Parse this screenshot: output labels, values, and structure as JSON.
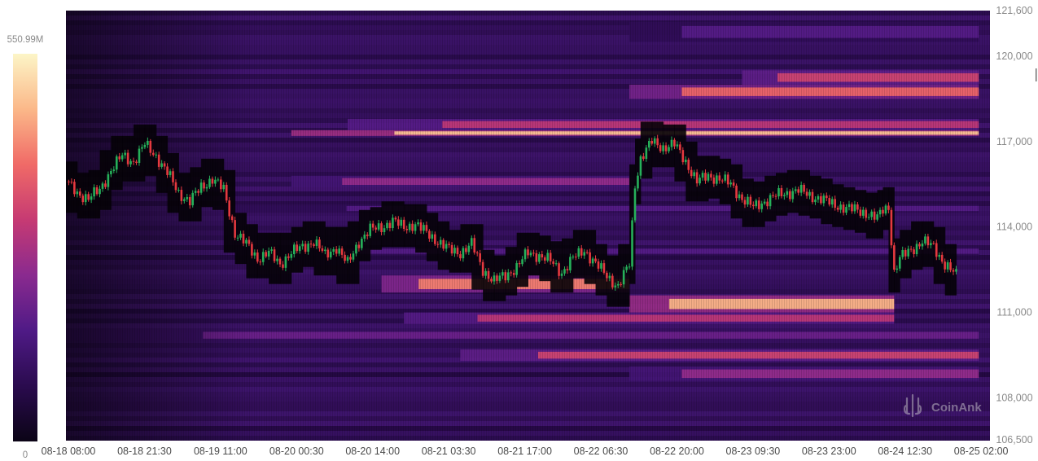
{
  "chart_data": {
    "type": "heatmap",
    "subtype": "liquidation-heatmap-with-candlesticks",
    "watermark": "CoinAnk",
    "colorbar": {
      "max_label": "550.99M",
      "min_label": "0",
      "stops": [
        "#0b0416",
        "#2a0b4e",
        "#4f1a86",
        "#8a2a8f",
        "#c63a73",
        "#f06a67",
        "#fbb889",
        "#fcf5c7"
      ]
    },
    "y_axis": {
      "ylim": [
        106500,
        121600
      ],
      "ticks": [
        121600,
        120000,
        117000,
        114000,
        111000,
        108000,
        106500
      ],
      "tick_labels": [
        "121,600",
        "120,000",
        "117,000",
        "114,000",
        "111,000",
        "108,000",
        "106,500"
      ]
    },
    "x_axis": {
      "start": "08-18 08:00",
      "end": "08-25 06:00",
      "ticks": [
        0,
        13.5,
        27,
        40.5,
        54,
        67.5,
        81,
        94.5,
        108,
        121.5,
        135,
        148.5,
        162
      ],
      "tick_labels": [
        "08-18 08:00",
        "08-18 21:30",
        "08-19 11:00",
        "08-20 00:30",
        "08-20 14:00",
        "08-21 03:30",
        "08-21 17:00",
        "08-22 06:30",
        "08-22 20:00",
        "08-23 09:30",
        "08-23 23:00",
        "08-24 12:30",
        "08-25 02:00"
      ]
    },
    "price_path": [
      [
        0,
        115600
      ],
      [
        2,
        115200
      ],
      [
        4,
        115000
      ],
      [
        6,
        115300
      ],
      [
        8,
        116000
      ],
      [
        10,
        116500
      ],
      [
        12,
        116300
      ],
      [
        14,
        116900
      ],
      [
        16,
        116500
      ],
      [
        18,
        115900
      ],
      [
        20,
        115200
      ],
      [
        22,
        114900
      ],
      [
        24,
        115400
      ],
      [
        26,
        115700
      ],
      [
        28,
        115300
      ],
      [
        30,
        113800
      ],
      [
        32,
        113400
      ],
      [
        34,
        112900
      ],
      [
        36,
        113100
      ],
      [
        38,
        112700
      ],
      [
        40,
        113100
      ],
      [
        42,
        113300
      ],
      [
        44,
        113500
      ],
      [
        46,
        113000
      ],
      [
        48,
        113300
      ],
      [
        50,
        112700
      ],
      [
        52,
        113500
      ],
      [
        54,
        113900
      ],
      [
        56,
        114000
      ],
      [
        58,
        114200
      ],
      [
        60,
        114000
      ],
      [
        62,
        114100
      ],
      [
        64,
        113800
      ],
      [
        66,
        113500
      ],
      [
        68,
        113200
      ],
      [
        70,
        113100
      ],
      [
        72,
        113400
      ],
      [
        74,
        112500
      ],
      [
        76,
        112100
      ],
      [
        78,
        112300
      ],
      [
        80,
        112600
      ],
      [
        82,
        113100
      ],
      [
        84,
        113000
      ],
      [
        86,
        112800
      ],
      [
        88,
        112400
      ],
      [
        90,
        112900
      ],
      [
        92,
        113200
      ],
      [
        94,
        112700
      ],
      [
        96,
        112300
      ],
      [
        98,
        111900
      ],
      [
        100,
        112700
      ],
      [
        101,
        115500
      ],
      [
        102,
        116400
      ],
      [
        104,
        117000
      ],
      [
        106,
        116800
      ],
      [
        108,
        116900
      ],
      [
        110,
        116300
      ],
      [
        112,
        115600
      ],
      [
        114,
        115800
      ],
      [
        116,
        115700
      ],
      [
        118,
        115500
      ],
      [
        120,
        115000
      ],
      [
        122,
        114700
      ],
      [
        124,
        114900
      ],
      [
        126,
        115100
      ],
      [
        128,
        115200
      ],
      [
        130,
        115300
      ],
      [
        132,
        115100
      ],
      [
        134,
        115000
      ],
      [
        136,
        114800
      ],
      [
        138,
        114700
      ],
      [
        140,
        114600
      ],
      [
        142,
        114500
      ],
      [
        144,
        114300
      ],
      [
        145,
        114600
      ],
      [
        146,
        114700
      ],
      [
        147,
        112400
      ],
      [
        148,
        112900
      ],
      [
        150,
        113200
      ],
      [
        152,
        113500
      ],
      [
        154,
        113300
      ],
      [
        156,
        112700
      ],
      [
        158,
        112300
      ]
    ],
    "liquidity_bands": [
      {
        "y0": 117200,
        "y1": 117400,
        "x0": 40,
        "x1": 162,
        "intensity": 0.88
      },
      {
        "y0": 117400,
        "y1": 117800,
        "x0": 50,
        "x1": 162,
        "intensity": 0.55
      },
      {
        "y0": 118500,
        "y1": 119000,
        "x0": 100,
        "x1": 162,
        "intensity": 0.7
      },
      {
        "y0": 119000,
        "y1": 119500,
        "x0": 120,
        "x1": 162,
        "intensity": 0.6
      },
      {
        "y0": 120500,
        "y1": 121200,
        "x0": 100,
        "x1": 162,
        "intensity": 0.3
      },
      {
        "y0": 115400,
        "y1": 115800,
        "x0": 40,
        "x1": 100,
        "intensity": 0.45
      },
      {
        "y0": 114500,
        "y1": 114800,
        "x0": 30,
        "x1": 162,
        "intensity": 0.3
      },
      {
        "y0": 111700,
        "y1": 112300,
        "x0": 56,
        "x1": 100,
        "intensity": 0.75
      },
      {
        "y0": 111000,
        "y1": 111600,
        "x0": 100,
        "x1": 147,
        "intensity": 0.85
      },
      {
        "y0": 110600,
        "y1": 111000,
        "x0": 60,
        "x1": 147,
        "intensity": 0.55
      },
      {
        "y0": 109300,
        "y1": 109700,
        "x0": 70,
        "x1": 162,
        "intensity": 0.6
      },
      {
        "y0": 108600,
        "y1": 109100,
        "x0": 100,
        "x1": 162,
        "intensity": 0.45
      },
      {
        "y0": 113000,
        "y1": 113300,
        "x0": 30,
        "x1": 162,
        "intensity": 0.3
      },
      {
        "y0": 110000,
        "y1": 110400,
        "x0": 0,
        "x1": 162,
        "intensity": 0.35
      }
    ]
  }
}
